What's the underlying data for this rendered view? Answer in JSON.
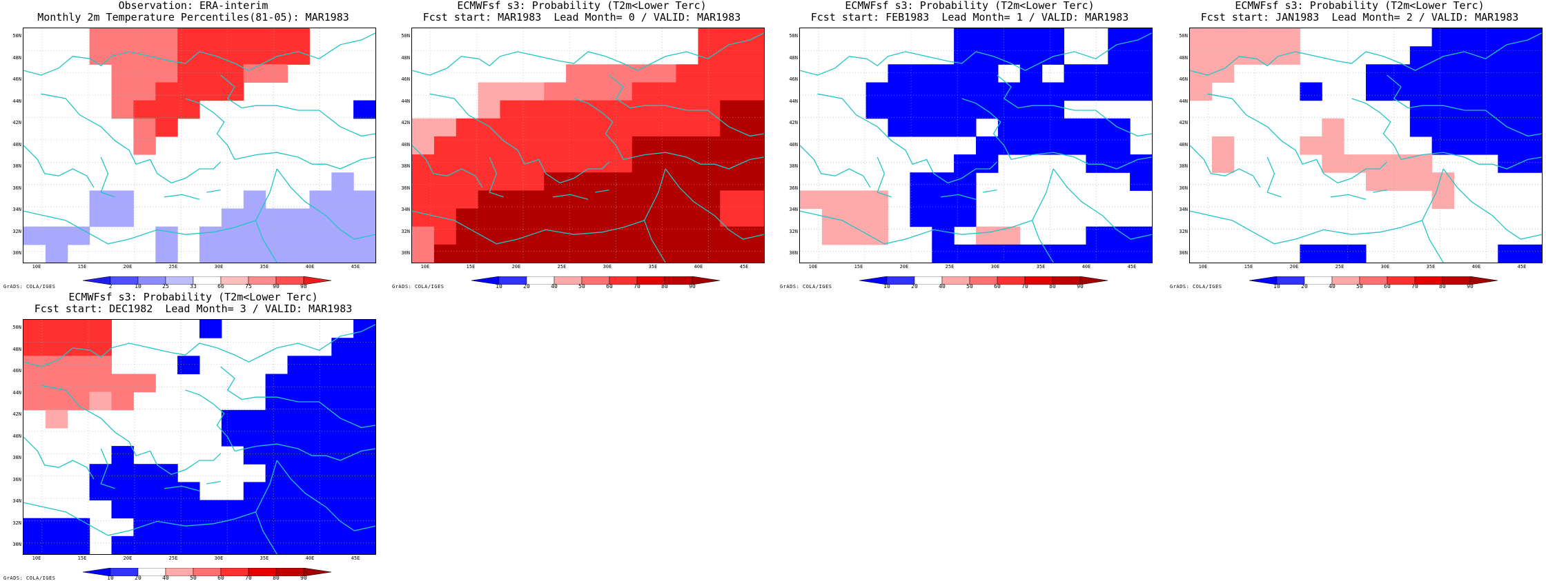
{
  "credit": "GrADS: COLA/IGES",
  "lat_labels": [
    "50N",
    "48N",
    "46N",
    "44N",
    "42N",
    "40N",
    "38N",
    "36N",
    "34N",
    "32N",
    "30N"
  ],
  "lon_labels": [
    "10E",
    "15E",
    "20E",
    "25E",
    "30E",
    "35E",
    "40E",
    "45E"
  ],
  "colorbars": {
    "obs": {
      "labels": [
        "2",
        "10",
        "25",
        "33",
        "66",
        "75",
        "90",
        "98"
      ],
      "colors": [
        "#1e1ee6",
        "#5050ff",
        "#8c8cff",
        "#bebeff",
        "#ffffff",
        "#ffbebe",
        "#ff8c8c",
        "#ff5050",
        "#e61e1e"
      ]
    },
    "prob": {
      "labels": [
        "10",
        "20",
        "40",
        "50",
        "60",
        "70",
        "80",
        "90"
      ],
      "colors": [
        "#0000ff",
        "#3232ff",
        "#ffffff",
        "#ffaaaa",
        "#ff7070",
        "#ff3030",
        "#e60000",
        "#c00000",
        "#a00000"
      ]
    }
  },
  "panels": [
    {
      "line1": "Observation: ERA-interim",
      "line2": "Monthly 2m Temperature Percentiles(81-05): MAR1983",
      "bar": "obs",
      "grid": [
        "wwwssssrrrrrrwww",
        "wwwssssrrrrrrwww",
        "wwwwsssrrrsswwww",
        "wwwwssrrrrwwwwww",
        "wwwwsrrrwwwwwwwb",
        "wwwwwsrwwwwwwwww",
        "wwwwwswwwwwwwwww",
        "wwwwwwwwwwwwwwww",
        "wwwwwwwwwwwwwwlw",
        "wwwllwwwwwlwwlll",
        "wwwllwwwwlllllll",
        "lllwwwlwllllllll",
        "wlwwwwlwllllllll"
      ]
    },
    {
      "line1": "ECMWFsf s3: Probability (T2m<Lower Terc)",
      "line2": "Fcst start: MAR1983  Lead Month= 0 / VALID: MAR1983",
      "bar": "prob",
      "grid": [
        "wwwwwwwwwwwwwrrr",
        "wwwwwwwwwwwwwrrr",
        "wwwwwwwsssssrrrr",
        "wwwtttssssrrrrrr",
        "wwwtrrrrrrrrrrdd",
        "ttrrrrrrrrrrrrdd",
        "trrrrrrrrrdddddd",
        "rrrrrrrrrrdddddd",
        "rrrrrrdddddddddd",
        "rrrdddddddddddrr",
        "rrddddddddddddrr",
        "srdddddddddddddd",
        "sddddddddddddddd"
      ]
    },
    {
      "line1": "ECMWFsf s3: Probability (T2m<Lower Terc)",
      "line2": "Fcst start: FEB1983  Lead Month= 1 / VALID: MAR1983",
      "bar": "prob",
      "grid": [
        "wwwwwwwbbbbbwwbb",
        "wwwwwwwbbbbbwwbb",
        "wwwwbbbbbwbwbbbb",
        "wwwbbbbbbbbbbbbb",
        "wwwbbbbbbbbbwwww",
        "wwwwbbbbwbbbbbbw",
        "wwwwwwwwbbbbbbbw",
        "wwwwwwwbbwwwwbbb",
        "wwwwwbbbwwwwwwwb",
        "ttttwbbbwwwwwwww",
        "wtttwbbbwwwwwwww",
        "wtttwwbwttwwwbbb",
        "wwwwwwbbbbbbbbbb"
      ]
    },
    {
      "line1": "ECMWFsf s3: Probability (T2m<Lower Terc)",
      "line2": "Fcst start: JAN1983  Lead Month= 2 / VALID: MAR1983",
      "bar": "prob",
      "grid": [
        "tttttwwwwwwbbbbb",
        "tttttwwwwwbbbbbb",
        "ttwwwwwwbbbbbbbb",
        "twwwwbwwbbbbbbbb",
        "wwwwwwwwwwbbbbbb",
        "wwwwwwtwwwbbbbbb",
        "wtwwwttwwwwbbbbb",
        "wtwwwwtttttwwwbb",
        "wwwwwwwwttttwwww",
        "wwwwwwwwwwwtwwww",
        "wwwwwwwwwwwwwwww",
        "wwwwwwwwwwwwwwww",
        "wwwwwbbbwwwwwwbb"
      ]
    },
    {
      "line1": "ECMWFsf s3: Probability (T2m<Lower Terc)",
      "line2": "Fcst start: DEC1982  Lead Month= 3 / VALID: MAR1983",
      "bar": "prob",
      "grid": [
        "rrrrwwwwbwwwwwwb",
        "rrrrwwwwwwwwwwbb",
        "sssswwwbwwwwbbbb",
        "sssssswwwwwbbbbb",
        "ssstswwwwwwbbbbb",
        "wtwwwwwwwbbbbbbb",
        "wwwwwwwwwbbbbbbb",
        "wwwwbwwwwwbbbbbb",
        "wwwbbbbwwwwbbbbb",
        "wwwbbbbbwwbbbbbb",
        "wwwwbbbbbbbbbbbb",
        "bbbwwbbbbbbbbbbb",
        "bbbwbbbbbbbbbbbb"
      ]
    }
  ],
  "cell_colors": {
    "w": "#ffffff",
    "b": "#0000ff",
    "l": "#a8a8ff",
    "s": "#ff7a7a",
    "t": "#ffaaaa",
    "r": "#ff3030",
    "d": "#b00000"
  }
}
